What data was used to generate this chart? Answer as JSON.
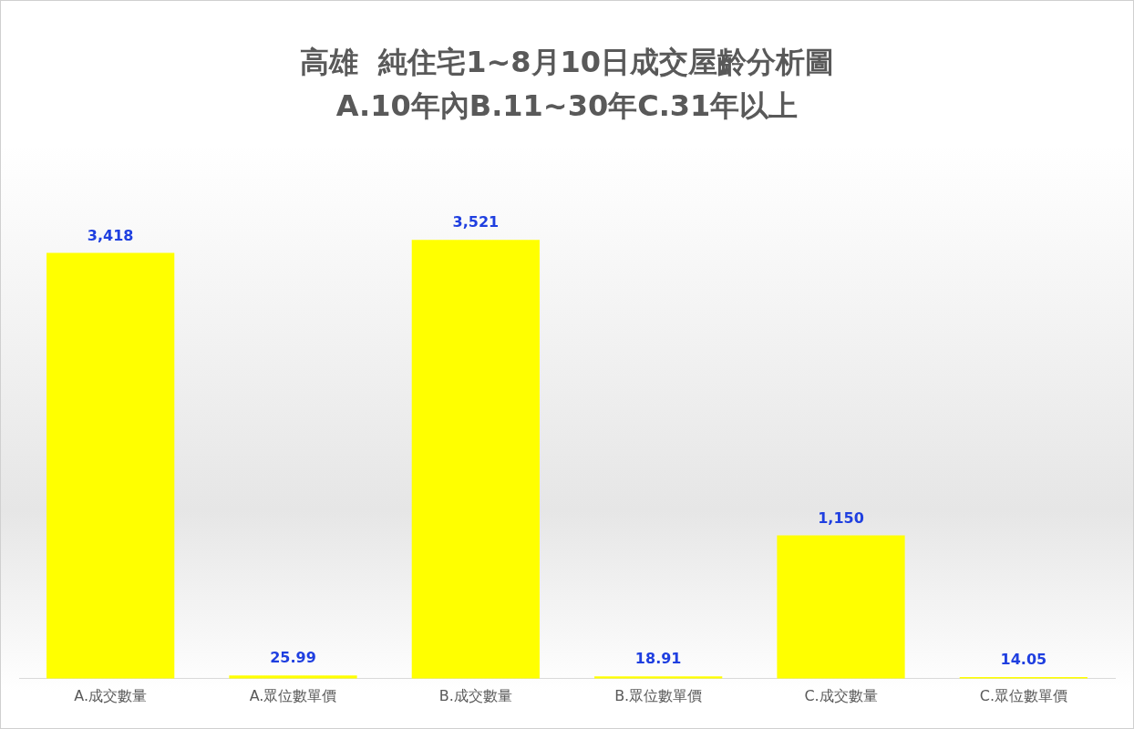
{
  "chart_data": {
    "type": "bar",
    "title": "高雄  純住宅1~8月10日成交屋齡分析圖",
    "subtitle": "A.10年內B.11~30年C.31年以上",
    "categories": [
      "A.成交數量",
      "A.眾位數單價",
      "B.成交數量",
      "B.眾位數單價",
      "C.成交數量",
      "C.眾位數單價"
    ],
    "values": [
      3418,
      25.99,
      3521,
      18.91,
      1150,
      14.05
    ],
    "value_labels": [
      "3,418",
      "25.99",
      "3,521",
      "18.91",
      "1,150",
      "14.05"
    ],
    "color": "#ffff00",
    "grid": false,
    "legend": false
  }
}
